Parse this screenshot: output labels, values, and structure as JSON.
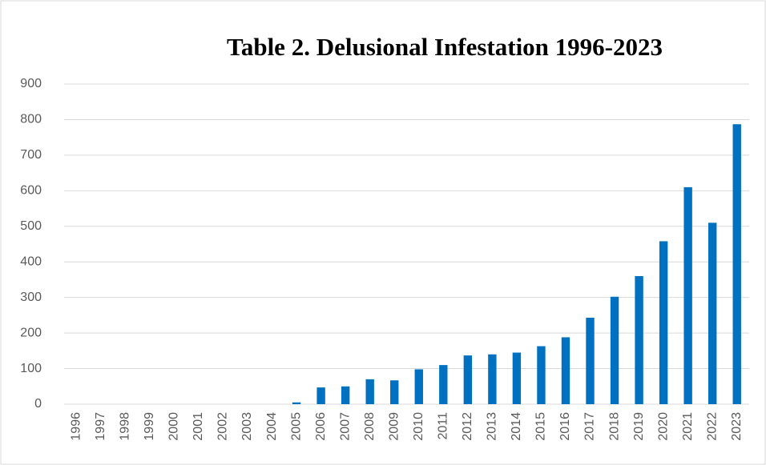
{
  "chart_data": {
    "type": "bar",
    "title": "Table 2. Delusional Infestation 1996-2023",
    "categories": [
      "1996",
      "1997",
      "1998",
      "1999",
      "2000",
      "2001",
      "2002",
      "2003",
      "2004",
      "2005",
      "2006",
      "2007",
      "2008",
      "2009",
      "2010",
      "2011",
      "2012",
      "2013",
      "2014",
      "2015",
      "2016",
      "2017",
      "2018",
      "2019",
      "2020",
      "2021",
      "2022",
      "2023"
    ],
    "values": [
      0,
      0,
      0,
      0,
      0,
      0,
      0,
      0,
      0,
      5,
      47,
      50,
      70,
      67,
      98,
      110,
      137,
      140,
      145,
      163,
      188,
      243,
      302,
      360,
      458,
      610,
      510,
      787
    ],
    "color": "#0070c0",
    "ylim": [
      0,
      900
    ],
    "yticks": [
      0,
      100,
      200,
      300,
      400,
      500,
      600,
      700,
      800,
      900
    ],
    "grid": true
  }
}
